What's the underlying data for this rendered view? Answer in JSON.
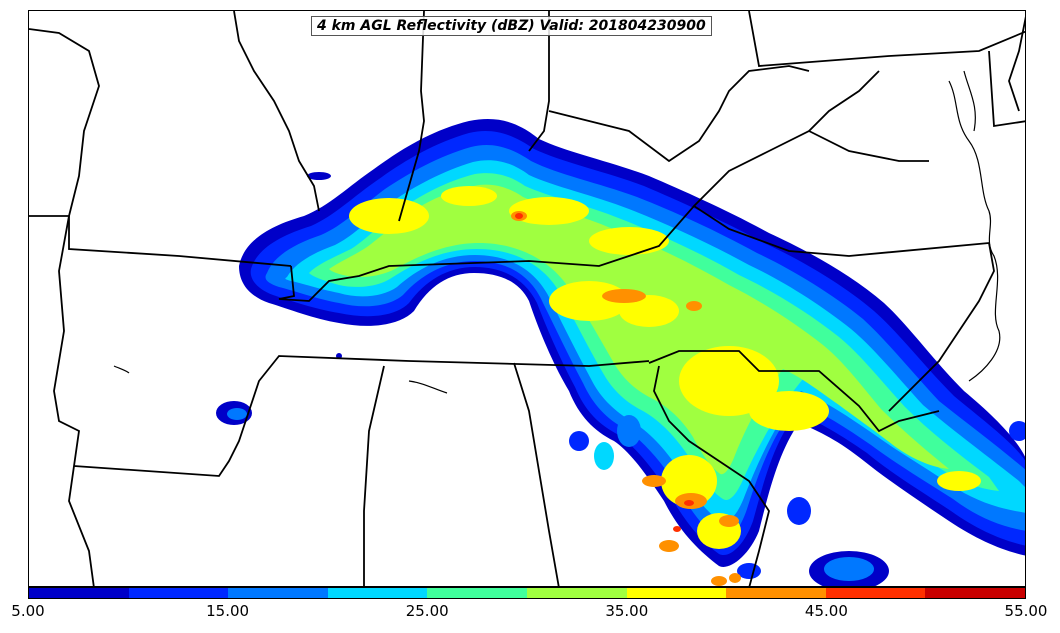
{
  "map": {
    "title": "4 km AGL Reflectivity (dBZ) Valid: 201804230900"
  },
  "colorbar": {
    "colors": [
      "#0000c8",
      "#0028ff",
      "#0078ff",
      "#00d8ff",
      "#40ff9c",
      "#a0ff40",
      "#ffff00",
      "#ff9000",
      "#ff3000",
      "#c80000"
    ],
    "tick_labels": [
      "5.00",
      "15.00",
      "25.00",
      "35.00",
      "45.00",
      "55.00"
    ]
  }
}
